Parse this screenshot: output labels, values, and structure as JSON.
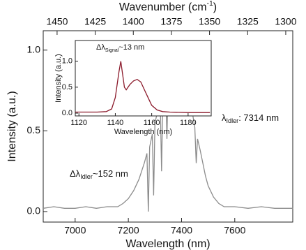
{
  "chart_data": [
    {
      "type": "line",
      "xlabel": "Wavelength (nm)",
      "ylabel": "Intensity (a.u.)",
      "x2label": [
        "Wavenumber (cm",
        "-1",
        ")"
      ],
      "color": "#8c8c8c",
      "x": [
        6880,
        6920,
        6960,
        7000,
        7040,
        7080,
        7120,
        7160,
        7180,
        7200,
        7220,
        7240,
        7260,
        7270,
        7275,
        7280,
        7290,
        7295,
        7300,
        7310,
        7320,
        7325,
        7330,
        7340,
        7345,
        7350,
        7360,
        7365,
        7370,
        7380,
        7390,
        7395,
        7400,
        7410,
        7420,
        7430,
        7440,
        7450,
        7455,
        7460,
        7470,
        7480,
        7490,
        7500,
        7520,
        7540,
        7560,
        7600,
        7650,
        7700,
        7750,
        7820
      ],
      "values": [
        0.02,
        0.03,
        0.02,
        0.02,
        0.03,
        0.02,
        0.03,
        0.03,
        0.05,
        0.08,
        0.13,
        0.2,
        0.3,
        0.36,
        0.0,
        0.4,
        0.48,
        0.1,
        0.55,
        0.62,
        0.68,
        0.25,
        0.74,
        0.8,
        0.45,
        0.86,
        0.9,
        0.6,
        0.95,
        0.98,
        0.93,
        0.7,
        0.94,
        0.88,
        0.8,
        0.7,
        0.62,
        0.52,
        0.3,
        0.45,
        0.38,
        0.3,
        0.22,
        0.16,
        0.09,
        0.05,
        0.03,
        0.03,
        0.02,
        0.03,
        0.02,
        0.02
      ],
      "xlim": [
        6880,
        7818
      ],
      "ylim": [
        -0.065,
        1.12
      ],
      "x2lim": [
        1459.1,
        1295.4
      ],
      "xticks": [
        7000,
        7200,
        7400,
        7600
      ],
      "yticks": [
        {
          "value": 0,
          "label": "0.0"
        },
        {
          "value": 0.5,
          "label": "0.5"
        },
        {
          "value": 1,
          "label": "1.0"
        }
      ],
      "x2ticks": [
        1450,
        1425,
        1400,
        1375,
        1350,
        1325,
        1300
      ],
      "annotations": [
        [
          "Δλ",
          "Idler",
          "~152 nm"
        ],
        [
          "λ",
          "Idler",
          ": 7314 nm"
        ]
      ]
    },
    {
      "type": "line",
      "xlabel": "Wavelength (nm)",
      "ylabel": "Intensity (a.u.)",
      "color": "#8b1a2b",
      "x": [
        1118,
        1130,
        1135,
        1138,
        1140,
        1142,
        1143,
        1144,
        1145,
        1146,
        1148,
        1150,
        1152,
        1154,
        1156,
        1158,
        1160,
        1163,
        1166,
        1170,
        1180,
        1192
      ],
      "values": [
        0.02,
        0.02,
        0.03,
        0.08,
        0.3,
        0.8,
        1.0,
        0.75,
        0.5,
        0.45,
        0.55,
        0.62,
        0.65,
        0.6,
        0.45,
        0.3,
        0.15,
        0.06,
        0.03,
        0.02,
        0.01,
        0.01
      ],
      "xlim": [
        1118,
        1192.7
      ],
      "ylim": [
        -0.054,
        1.4
      ],
      "xticks": [
        1120,
        1140,
        1160,
        1180
      ],
      "yticks": [
        {
          "value": 0,
          "label": "0.0"
        },
        {
          "value": 0.5,
          "label": "0.5"
        },
        {
          "value": 1,
          "label": "1.0"
        }
      ],
      "annotations": [
        [
          "Δλ",
          "Signal",
          "~13 nm"
        ]
      ]
    }
  ]
}
